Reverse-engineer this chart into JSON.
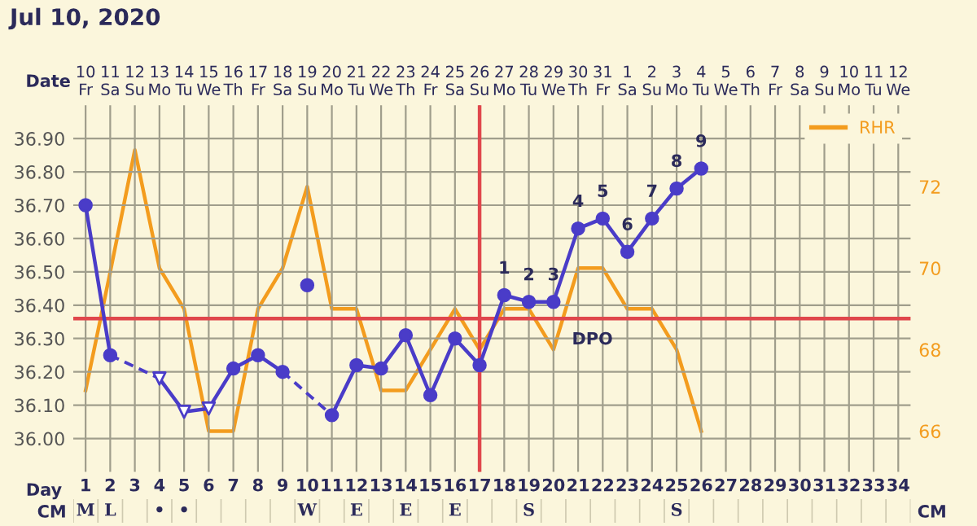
{
  "chart_data": [
    {
      "type": "line",
      "title": "Jul 10, 2020",
      "xlabel": "Date",
      "x": [
        "2020-07-10",
        "2020-07-11",
        "2020-07-12",
        "2020-07-13",
        "2020-07-14",
        "2020-07-15",
        "2020-07-16",
        "2020-07-17",
        "2020-07-18",
        "2020-07-19",
        "2020-07-20",
        "2020-07-21",
        "2020-07-22",
        "2020-07-23",
        "2020-07-24",
        "2020-07-25",
        "2020-07-26",
        "2020-07-27",
        "2020-07-28",
        "2020-07-29",
        "2020-07-30",
        "2020-07-31",
        "2020-08-01",
        "2020-08-02",
        "2020-08-03",
        "2020-08-04"
      ],
      "xlim": [
        "2020-07-09T12:00",
        "2020-08-12T12:00"
      ],
      "xticks": [
        {
          "value": "2020-07-10",
          "label": "10\nFr"
        },
        {
          "value": "2020-07-11",
          "label": "11\nSa"
        },
        {
          "value": "2020-07-12",
          "label": "12\nSu"
        },
        {
          "value": "2020-07-13",
          "label": "13\nMo"
        },
        {
          "value": "2020-07-14",
          "label": "14\nTu"
        },
        {
          "value": "2020-07-15",
          "label": "15\nWe"
        },
        {
          "value": "2020-07-16",
          "label": "16\nTh"
        },
        {
          "value": "2020-07-17",
          "label": "17\nFr"
        },
        {
          "value": "2020-07-18",
          "label": "18\nSa"
        },
        {
          "value": "2020-07-19",
          "label": "19\nSu"
        },
        {
          "value": "2020-07-20",
          "label": "20\nMo"
        },
        {
          "value": "2020-07-21",
          "label": "21\nTu"
        },
        {
          "value": "2020-07-22",
          "label": "22\nWe"
        },
        {
          "value": "2020-07-23",
          "label": "23\nTh"
        },
        {
          "value": "2020-07-24",
          "label": "24\nFr"
        },
        {
          "value": "2020-07-25",
          "label": "25\nSa"
        },
        {
          "value": "2020-07-26",
          "label": "26\nSu"
        },
        {
          "value": "2020-07-27",
          "label": "27\nMo"
        },
        {
          "value": "2020-07-28",
          "label": "28\nTu"
        },
        {
          "value": "2020-07-29",
          "label": "29\nWe"
        },
        {
          "value": "2020-07-30",
          "label": "30\nTh"
        },
        {
          "value": "2020-07-31",
          "label": "31\nFr"
        },
        {
          "value": "2020-08-01",
          "label": "1\nSa"
        },
        {
          "value": "2020-08-02",
          "label": "2\nSu"
        },
        {
          "value": "2020-08-03",
          "label": "3\nMo"
        },
        {
          "value": "2020-08-04",
          "label": "4\nTu"
        },
        {
          "value": "2020-08-05",
          "label": "5\nWe"
        },
        {
          "value": "2020-08-06",
          "label": "6\nTh"
        },
        {
          "value": "2020-08-07",
          "label": "7\nFr"
        },
        {
          "value": "2020-08-08",
          "label": "8\nSa"
        },
        {
          "value": "2020-08-09",
          "label": "9\nSu"
        },
        {
          "value": "2020-08-10",
          "label": "10\nMo"
        },
        {
          "value": "2020-08-11",
          "label": "11\nTu"
        },
        {
          "value": "2020-08-12",
          "label": "12\nWe"
        }
      ],
      "ylim": [
        35.9,
        37.0
      ],
      "yticks": [
        {
          "value": 36.0,
          "label": "36.00"
        },
        {
          "value": 36.1,
          "label": "36.10"
        },
        {
          "value": 36.2,
          "label": "36.20"
        },
        {
          "value": 36.3,
          "label": "36.30"
        },
        {
          "value": 36.4,
          "label": "36.40"
        },
        {
          "value": 36.5,
          "label": "36.50"
        },
        {
          "value": 36.6,
          "label": "36.60"
        },
        {
          "value": 36.7,
          "label": "36.70"
        },
        {
          "value": 36.8,
          "label": "36.80"
        },
        {
          "value": 36.9,
          "label": "36.90"
        }
      ],
      "y2lim": [
        65,
        74
      ],
      "y2ticks": [
        66,
        68,
        70,
        72
      ],
      "grid": true,
      "legend": "top right",
      "series": [
        {
          "color": "#4a3cc8",
          "marker": "none",
          "line_style": "solid",
          "values": [
            36.7,
            36.25,
            null,
            36.18,
            36.08,
            36.09,
            36.21,
            36.25,
            36.2,
            null,
            36.07,
            36.22,
            36.21,
            36.31,
            36.13,
            36.3,
            36.22,
            36.43,
            36.41,
            36.41,
            36.63,
            36.66,
            36.56,
            36.66,
            36.75,
            36.81
          ]
        },
        {
          "type": "scatter",
          "color": "#4a3cc8",
          "marker": "circle",
          "x": [
            "2020-07-10",
            "2020-07-11",
            "2020-07-16",
            "2020-07-17",
            "2020-07-18",
            "2020-07-19",
            "2020-07-20",
            "2020-07-21",
            "2020-07-22",
            "2020-07-23",
            "2020-07-24",
            "2020-07-25",
            "2020-07-26",
            "2020-07-27",
            "2020-07-28",
            "2020-07-29",
            "2020-07-30",
            "2020-07-31",
            "2020-08-01",
            "2020-08-02",
            "2020-08-03",
            "2020-08-04"
          ],
          "values": [
            36.7,
            36.25,
            36.21,
            36.25,
            36.2,
            36.46,
            36.07,
            36.22,
            36.21,
            36.31,
            36.13,
            36.3,
            36.22,
            36.43,
            36.41,
            36.41,
            36.63,
            36.66,
            36.56,
            36.66,
            36.75,
            36.81
          ]
        },
        {
          "type": "scatter",
          "color": "#4a3cc8",
          "marker": "triangle",
          "x": [
            "2020-07-13",
            "2020-07-14",
            "2020-07-15"
          ],
          "values": [
            36.18,
            36.08,
            36.09
          ]
        },
        {
          "name": "RHR",
          "color": "#f39c1e",
          "marker": "none",
          "line_style": "solid",
          "axis": "y2",
          "values": [
            67,
            69.9,
            72.9,
            70,
            69,
            66,
            66,
            69,
            70,
            72,
            69,
            69,
            67,
            67,
            68,
            69,
            68,
            69,
            69,
            68,
            70,
            70,
            69,
            69,
            68,
            66
          ]
        }
      ],
      "ref_lines": [
        {
          "axis": "y",
          "value": 36.36,
          "color": "#e0474c"
        },
        {
          "axis": "x",
          "value": "2020-07-26",
          "color": "#e0474c"
        }
      ],
      "annotations": [
        {
          "text": "1",
          "x": "2020-07-27",
          "y": 36.43
        },
        {
          "text": "2",
          "x": "2020-07-28",
          "y": 36.41
        },
        {
          "text": "3",
          "x": "2020-07-29",
          "y": 36.41
        },
        {
          "text": "4",
          "x": "2020-07-30",
          "y": 36.63
        },
        {
          "text": "5",
          "x": "2020-07-31",
          "y": 36.66
        },
        {
          "text": "6",
          "x": "2020-08-01",
          "y": 36.56
        },
        {
          "text": "7",
          "x": "2020-08-02",
          "y": 36.66
        },
        {
          "text": "8",
          "x": "2020-08-03",
          "y": 36.75
        },
        {
          "text": "9",
          "x": "2020-08-04",
          "y": 36.81
        },
        "DPO"
      ]
    },
    {
      "type": "heatmap",
      "xlabel": "Day",
      "categories": [
        "1",
        "2",
        "3",
        "4",
        "5",
        "6",
        "7",
        "8",
        "9",
        "10",
        "11",
        "12",
        "13",
        "14",
        "15",
        "16",
        "17",
        "18",
        "19",
        "20",
        "21",
        "22",
        "23",
        "24",
        "25",
        "26",
        "27",
        "28",
        "29",
        "30",
        "31",
        "32",
        "33",
        "34"
      ],
      "y_categories": [
        "CM"
      ],
      "y2_categories": [
        "CM"
      ],
      "cells": [
        [
          null,
          null,
          null,
          null,
          null,
          null,
          null,
          null,
          null,
          null,
          null,
          null,
          null,
          null,
          null,
          null,
          null,
          null,
          null,
          null,
          null,
          null,
          null,
          null,
          null,
          null,
          null,
          null,
          null,
          null,
          null,
          null,
          null,
          null
        ]
      ],
      "cell_labels": [
        [
          "M",
          "L",
          null,
          "•",
          "•",
          null,
          null,
          null,
          null,
          "W",
          null,
          "E",
          null,
          "E",
          null,
          "E",
          null,
          null,
          "S",
          null,
          null,
          null,
          null,
          null,
          "S",
          null,
          null,
          null,
          null,
          null,
          null,
          null,
          null,
          null
        ]
      ]
    }
  ]
}
